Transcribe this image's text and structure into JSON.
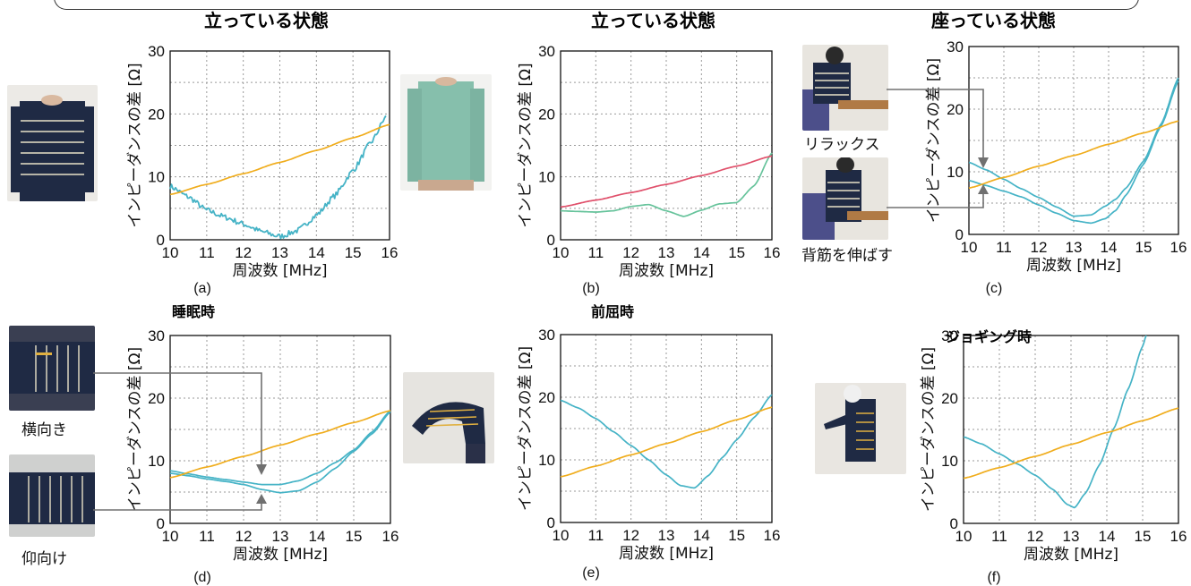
{
  "colors": {
    "teal": "#45b3c6",
    "orange": "#f0ad1d",
    "red": "#e0506b",
    "green": "#66c39b",
    "arrow": "#707070",
    "grid": "#9a9a9a"
  },
  "chart_data": [
    {
      "type": "line",
      "panel": "(a)",
      "title": "立っている状態",
      "xlabel": "周波数 [MHz]",
      "ylabel": "インピーダンスの差 [Ω]",
      "xlim": [
        10,
        16
      ],
      "ylim": [
        0,
        30
      ],
      "xticks": [
        "10",
        "11",
        "12",
        "13",
        "14",
        "15",
        "16"
      ],
      "yticks": [
        "0",
        "10",
        "20",
        "30"
      ],
      "grid": true,
      "series": [
        {
          "color": "teal",
          "noisy": true,
          "x": [
            10,
            10.5,
            11,
            11.5,
            12,
            12.5,
            13,
            13.5,
            14,
            14.5,
            15,
            15.5,
            15.9
          ],
          "y": [
            8.5,
            6.8,
            4.7,
            3.6,
            2.5,
            1.3,
            0.5,
            1.5,
            3.9,
            7.0,
            11.0,
            15.5,
            19.5
          ]
        },
        {
          "color": "orange",
          "x": [
            10,
            11,
            12,
            13,
            14,
            15,
            16
          ],
          "y": [
            7.2,
            8.8,
            10.5,
            12.3,
            14.2,
            16.2,
            18.3
          ]
        }
      ]
    },
    {
      "type": "line",
      "panel": "(b)",
      "title": "立っている状態",
      "xlabel": "周波数 [MHz]",
      "ylabel": "インピーダンスの差 [Ω]",
      "xlim": [
        10,
        16
      ],
      "ylim": [
        0,
        30
      ],
      "xticks": [
        "10",
        "11",
        "12",
        "13",
        "14",
        "15",
        "16"
      ],
      "yticks": [
        "0",
        "10",
        "20",
        "30"
      ],
      "grid": true,
      "series": [
        {
          "color": "green",
          "x": [
            10,
            10.5,
            11,
            11.5,
            12,
            12.5,
            13,
            13.5,
            14,
            14.5,
            15,
            15.5,
            16
          ],
          "y": [
            4.6,
            4.5,
            4.4,
            4.6,
            5.3,
            5.6,
            4.6,
            3.7,
            4.7,
            5.7,
            5.9,
            8.6,
            13.8
          ]
        },
        {
          "color": "red",
          "x": [
            10,
            11,
            12,
            13,
            14,
            15,
            16
          ],
          "y": [
            5.2,
            6.3,
            7.5,
            8.8,
            10.2,
            11.7,
            13.3
          ]
        }
      ]
    },
    {
      "type": "line",
      "panel": "(c)",
      "title": "座っている状態",
      "xlabel": "周波数 [MHz]",
      "ylabel": "インピーダンスの差 [Ω]",
      "xlim": [
        10,
        16
      ],
      "ylim": [
        0,
        30
      ],
      "xticks": [
        "10",
        "11",
        "12",
        "13",
        "14",
        "15",
        "16"
      ],
      "yticks": [
        "0",
        "10",
        "20",
        "30"
      ],
      "grid": true,
      "series": [
        {
          "color": "teal",
          "x": [
            10,
            10.5,
            11,
            11.5,
            12,
            12.5,
            13,
            13.5,
            13.9,
            14.2,
            14.5,
            15,
            15.5,
            16
          ],
          "y": [
            11.5,
            10.3,
            8.8,
            7.3,
            5.9,
            4.4,
            2.9,
            3.1,
            4.5,
            5.6,
            7.4,
            11.7,
            17.6,
            25.0
          ]
        },
        {
          "color": "teal",
          "x": [
            10,
            10.5,
            11,
            11.5,
            12,
            12.5,
            13,
            13.5,
            13.9,
            14.2,
            14.5,
            15,
            15.5,
            16
          ],
          "y": [
            8.6,
            7.8,
            6.9,
            6.0,
            4.7,
            3.4,
            2.2,
            1.8,
            2.5,
            3.8,
            6.3,
            11.2,
            17.3,
            24.5
          ]
        },
        {
          "color": "orange",
          "x": [
            10,
            11,
            12,
            13,
            14,
            15,
            16
          ],
          "y": [
            7.4,
            9.1,
            10.9,
            12.6,
            14.4,
            16.2,
            18.1
          ]
        }
      ]
    },
    {
      "type": "line",
      "panel": "(d)",
      "title": "睡眠時",
      "xlabel": "周波数 [MHz]",
      "ylabel": "インピーダンスの差 [Ω]",
      "xlim": [
        10,
        16
      ],
      "ylim": [
        0,
        30
      ],
      "xticks": [
        "10",
        "11",
        "12",
        "13",
        "14",
        "15",
        "16"
      ],
      "yticks": [
        "0",
        "10",
        "20",
        "30"
      ],
      "grid": true,
      "series": [
        {
          "color": "teal",
          "x": [
            10,
            10.5,
            11,
            11.5,
            12,
            12.5,
            13,
            13.5,
            14,
            14.5,
            15,
            15.5,
            16
          ],
          "y": [
            8.4,
            7.9,
            7.4,
            7.0,
            6.6,
            6.2,
            6.2,
            6.8,
            8.0,
            9.7,
            11.7,
            14.6,
            18.0
          ]
        },
        {
          "color": "teal",
          "x": [
            10,
            10.5,
            11,
            11.5,
            12,
            12.5,
            13,
            13.5,
            14,
            14.5,
            15,
            15.5,
            16
          ],
          "y": [
            8.0,
            7.6,
            7.1,
            6.7,
            6.2,
            5.4,
            4.9,
            5.2,
            6.6,
            8.8,
            11.5,
            14.3,
            17.8
          ]
        },
        {
          "color": "orange",
          "x": [
            10,
            11,
            12,
            13,
            14,
            15,
            16
          ],
          "y": [
            7.3,
            9.0,
            10.7,
            12.5,
            14.3,
            16.1,
            18.0
          ]
        }
      ]
    },
    {
      "type": "line",
      "panel": "(e)",
      "title": "前屈時",
      "xlabel": "周波数 [MHz]",
      "ylabel": "インピーダンスの差 [Ω]",
      "xlim": [
        10,
        16
      ],
      "ylim": [
        0,
        30
      ],
      "xticks": [
        "10",
        "11",
        "12",
        "13",
        "14",
        "15",
        "16"
      ],
      "yticks": [
        "0",
        "10",
        "20",
        "30"
      ],
      "grid": true,
      "series": [
        {
          "color": "teal",
          "x": [
            10,
            10.5,
            11,
            11.5,
            12,
            12.5,
            13,
            13.4,
            13.8,
            14.2,
            14.6,
            15,
            15.5,
            16
          ],
          "y": [
            19.5,
            18.3,
            16.6,
            14.5,
            12.3,
            10.0,
            7.6,
            5.9,
            5.5,
            7.5,
            10.4,
            13.2,
            16.8,
            20.4
          ]
        },
        {
          "color": "orange",
          "x": [
            10,
            11,
            12,
            13,
            14,
            15,
            16
          ],
          "y": [
            7.3,
            9.0,
            10.8,
            12.6,
            14.5,
            16.4,
            18.4
          ]
        }
      ]
    },
    {
      "type": "line",
      "panel": "(f)",
      "title": "ジョギング時",
      "xlabel": "周波数 [MHz]",
      "ylabel": "インピーダンスの差 [Ω]",
      "xlim": [
        10,
        16
      ],
      "ylim": [
        0,
        30
      ],
      "xticks": [
        "10",
        "11",
        "12",
        "13",
        "14",
        "15",
        "16"
      ],
      "yticks": [
        "0",
        "10",
        "20",
        "30"
      ],
      "grid": true,
      "series": [
        {
          "color": "teal",
          "x": [
            10,
            10.5,
            11,
            11.5,
            12,
            12.5,
            12.9,
            13.1,
            13.4,
            13.8,
            14.2,
            14.6,
            15,
            15.1
          ],
          "y": [
            13.8,
            12.7,
            11.1,
            9.5,
            7.7,
            5.4,
            3.0,
            2.5,
            4.8,
            9.4,
            15.2,
            21.5,
            28.3,
            30.0
          ]
        },
        {
          "color": "orange",
          "x": [
            10,
            11,
            12,
            13,
            14,
            15,
            16
          ],
          "y": [
            7.2,
            8.9,
            10.7,
            12.6,
            14.5,
            16.4,
            18.4
          ]
        }
      ]
    }
  ],
  "annotations": {
    "relax": "リラックス",
    "back_stretch": "背筋を伸ばす",
    "side": "横向き",
    "supine": "仰向け"
  },
  "photos": {
    "a": {
      "icon": "sweater-photo-striped"
    },
    "b": {
      "icon": "sweater-photo-green"
    },
    "c1": {
      "icon": "sitting-relax-photo"
    },
    "c2": {
      "icon": "sitting-straight-photo"
    },
    "d1": {
      "icon": "lying-side-photo"
    },
    "d2": {
      "icon": "lying-supine-photo"
    },
    "e": {
      "icon": "bending-forward-photo"
    },
    "f": {
      "icon": "jogging-photo"
    }
  }
}
